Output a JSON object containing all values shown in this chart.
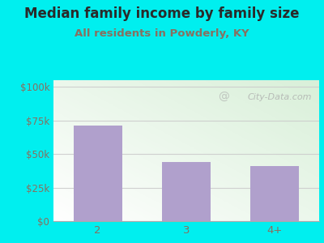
{
  "title": "Median family income by family size",
  "subtitle": "All residents in Powderly, KY",
  "categories": [
    "2",
    "3",
    "4+"
  ],
  "values": [
    71000,
    44000,
    41000
  ],
  "bar_color": "#b0a0cc",
  "bg_color": "#00efef",
  "plot_bg_color_top_left": "#cce8cc",
  "plot_bg_color_bottom_right": "#f8fff8",
  "title_color": "#2a2a2a",
  "subtitle_color": "#887060",
  "yticks": [
    0,
    25000,
    50000,
    75000,
    100000
  ],
  "ytick_labels": [
    "$0",
    "$25k",
    "$50k",
    "$75k",
    "$100k"
  ],
  "ylim": [
    0,
    105000
  ],
  "watermark": "City-Data.com",
  "title_fontsize": 12,
  "subtitle_fontsize": 9.5,
  "tick_color": "#887060",
  "grid_color": "#cccccc",
  "figsize": [
    4.0,
    3.0
  ],
  "dpi": 100
}
